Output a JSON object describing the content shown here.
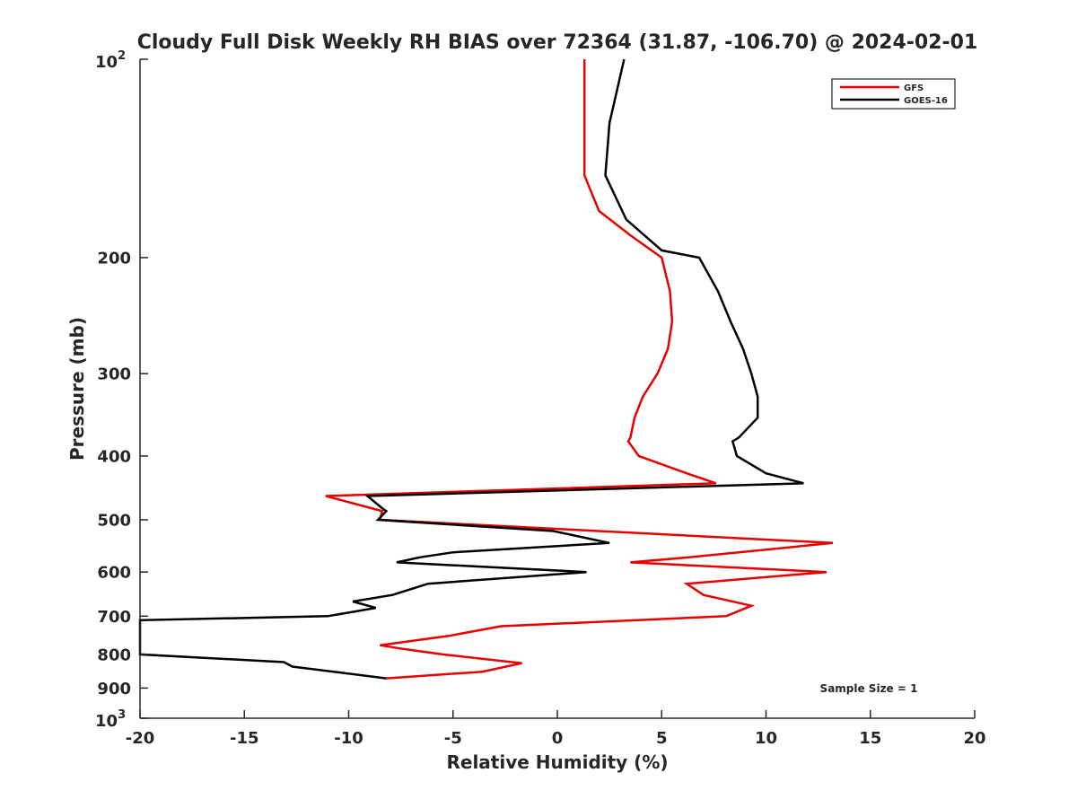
{
  "chart_data": {
    "type": "line",
    "title": "Cloudy Full Disk Weekly RH BIAS over 72364 (31.87, -106.70) @ 2024-02-01",
    "xlabel": "Relative Humidity (%)",
    "ylabel": "Pressure (mb)",
    "xlim": [
      -20,
      20
    ],
    "ylim": [
      100,
      1000
    ],
    "y_scale": "log",
    "y_reversed": true,
    "x_ticks": [
      "-20",
      "-15",
      "-10",
      "-5",
      "0",
      "5",
      "10",
      "15",
      "20"
    ],
    "y_ticks": [
      "200",
      "300",
      "400",
      "500",
      "600",
      "700",
      "800",
      "900"
    ],
    "y_tick_exponent_labels": [
      {
        "base": "10",
        "exp": "2"
      },
      {
        "base": "10",
        "exp": "3"
      }
    ],
    "legend_position": "top-right",
    "annotation": "Sample Size = 1",
    "series": [
      {
        "name": "GFS",
        "color": "#e60000",
        "points": [
          [
            1.3,
            100
          ],
          [
            1.3,
            125
          ],
          [
            1.3,
            150
          ],
          [
            2.0,
            170
          ],
          [
            3.5,
            185
          ],
          [
            5.0,
            200
          ],
          [
            5.4,
            225
          ],
          [
            5.5,
            250
          ],
          [
            5.3,
            275
          ],
          [
            4.8,
            300
          ],
          [
            4.1,
            325
          ],
          [
            3.7,
            350
          ],
          [
            3.5,
            375
          ],
          [
            3.4,
            380
          ],
          [
            3.9,
            400
          ],
          [
            6.2,
            425
          ],
          [
            7.6,
            440
          ],
          [
            -11.1,
            460
          ],
          [
            -8.4,
            485
          ],
          [
            -8.5,
            500
          ],
          [
            13.2,
            542
          ],
          [
            6.3,
            570
          ],
          [
            3.5,
            580
          ],
          [
            12.9,
            600
          ],
          [
            6.2,
            625
          ],
          [
            7.0,
            650
          ],
          [
            9.3,
            675
          ],
          [
            8.1,
            700
          ],
          [
            -2.7,
            725
          ],
          [
            -5.2,
            750
          ],
          [
            -8.5,
            775
          ],
          [
            -7.4,
            785
          ],
          [
            -5.5,
            800
          ],
          [
            -1.7,
            825
          ],
          [
            -3.6,
            850
          ],
          [
            -8.2,
            870
          ]
        ]
      },
      {
        "name": "GOES-16",
        "color": "#000000",
        "points": [
          [
            3.2,
            100
          ],
          [
            2.5,
            125
          ],
          [
            2.3,
            150
          ],
          [
            3.3,
            175
          ],
          [
            5.0,
            195
          ],
          [
            6.8,
            200
          ],
          [
            7.7,
            225
          ],
          [
            8.3,
            250
          ],
          [
            8.9,
            275
          ],
          [
            9.3,
            300
          ],
          [
            9.6,
            325
          ],
          [
            9.6,
            350
          ],
          [
            8.7,
            375
          ],
          [
            8.4,
            380
          ],
          [
            8.6,
            400
          ],
          [
            10.0,
            425
          ],
          [
            11.8,
            440
          ],
          [
            -9.1,
            460
          ],
          [
            -8.4,
            480
          ],
          [
            -8.2,
            485
          ],
          [
            -8.6,
            500
          ],
          [
            -0.2,
            520
          ],
          [
            2.5,
            542
          ],
          [
            -5.0,
            560
          ],
          [
            -6.6,
            570
          ],
          [
            -7.7,
            580
          ],
          [
            1.4,
            600
          ],
          [
            -6.2,
            625
          ],
          [
            -7.9,
            650
          ],
          [
            -9.8,
            665
          ],
          [
            -8.7,
            680
          ],
          [
            -11.0,
            700
          ],
          [
            -20.0,
            710
          ],
          [
            -20.0,
            800
          ],
          [
            -13.1,
            822
          ],
          [
            -12.7,
            835
          ],
          [
            -8.2,
            870
          ]
        ]
      }
    ]
  }
}
